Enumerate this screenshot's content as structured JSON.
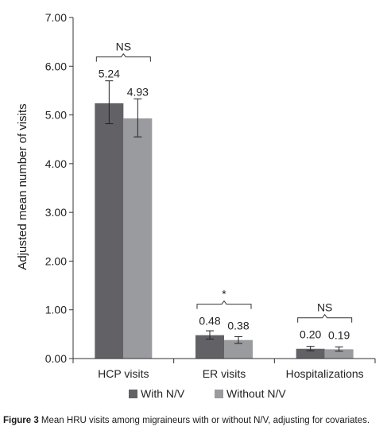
{
  "chart_data": {
    "type": "bar",
    "categories": [
      "HCP visits",
      "ER visits",
      "Hospitalizations"
    ],
    "series": [
      {
        "name": "With N/V",
        "values": [
          5.24,
          0.48,
          0.2
        ],
        "error": [
          [
            4.82,
            5.7
          ],
          [
            0.4,
            0.57
          ],
          [
            0.16,
            0.25
          ]
        ],
        "color": "#626266"
      },
      {
        "name": "Without N/V",
        "values": [
          4.93,
          0.38,
          0.19
        ],
        "error": [
          [
            4.55,
            5.33
          ],
          [
            0.31,
            0.45
          ],
          [
            0.15,
            0.24
          ]
        ],
        "color": "#9a9b9e"
      }
    ],
    "value_labels": [
      [
        "5.24",
        "4.93"
      ],
      [
        "0.48",
        "0.38"
      ],
      [
        "0.20",
        "0.19"
      ]
    ],
    "significance": [
      "NS",
      "*",
      "NS"
    ],
    "ylabel": "Adjusted mean number of visits",
    "ylim": [
      0,
      7
    ],
    "yticks": [
      "0.00",
      "1.00",
      "2.00",
      "3.00",
      "4.00",
      "5.00",
      "6.00",
      "7.00"
    ],
    "grid": false,
    "legend_position": "bottom"
  },
  "caption": {
    "label": "Figure 3",
    "text": " Mean HRU visits among migraineurs with or without N/V, adjusting for covariates."
  }
}
